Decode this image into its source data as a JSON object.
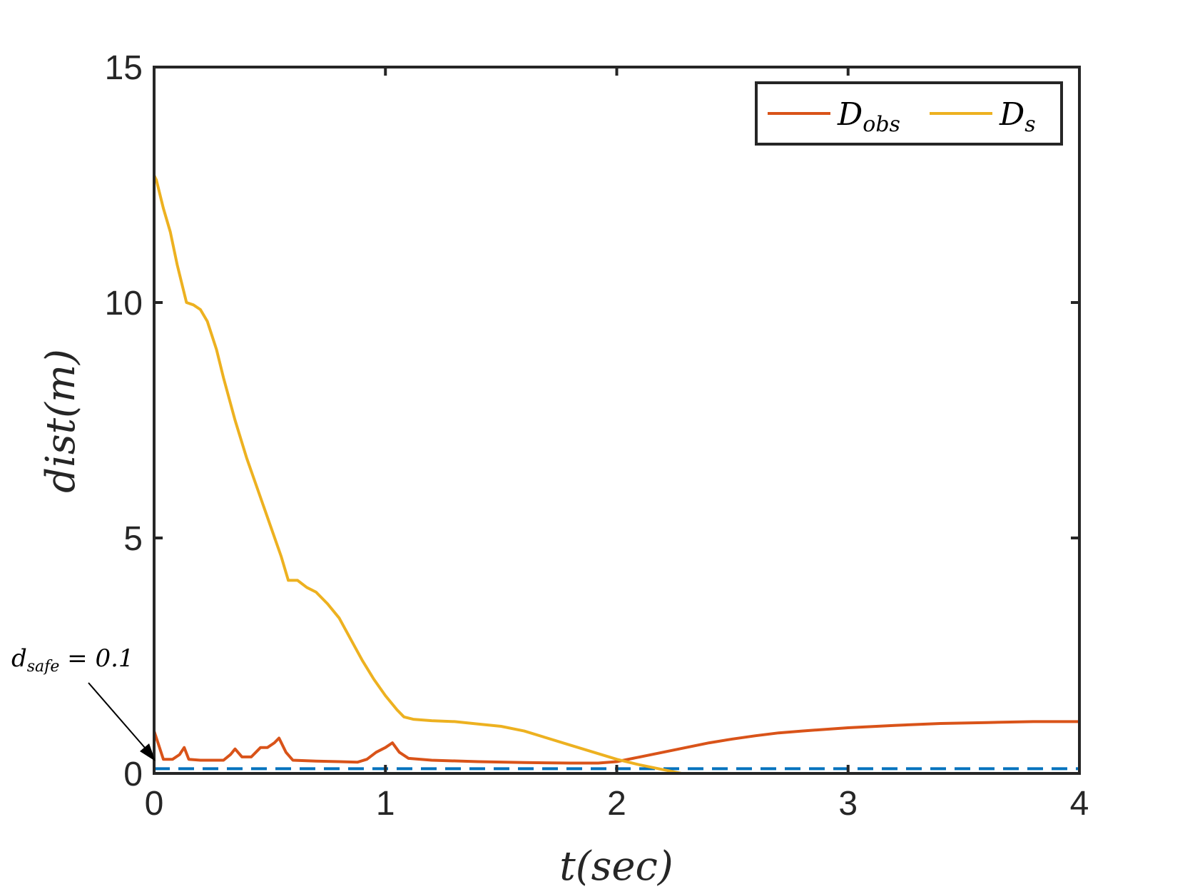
{
  "chart_data": {
    "type": "line",
    "xlabel": "t(sec)",
    "ylabel": "dist(m)",
    "xlim": [
      0,
      4
    ],
    "ylim": [
      0,
      15
    ],
    "x_ticks": [
      0,
      1,
      2,
      3,
      4
    ],
    "y_ticks": [
      0,
      5,
      10,
      15
    ],
    "x_tick_labels": [
      "0",
      "1",
      "2",
      "3",
      "4"
    ],
    "y_tick_labels": [
      "0",
      "5",
      "10",
      "15"
    ],
    "grid": false,
    "legend_position": "top-right",
    "legend_orientation": "horizontal",
    "legend": [
      {
        "base": "D",
        "sub": "obs",
        "color": "#D95319"
      },
      {
        "base": "D",
        "sub": "s",
        "color": "#EDB120"
      }
    ],
    "series": [
      {
        "name": "D_obs",
        "color": "#D95319",
        "style": "solid",
        "x": [
          0,
          0.02,
          0.04,
          0.08,
          0.11,
          0.13,
          0.15,
          0.2,
          0.3,
          0.33,
          0.35,
          0.38,
          0.42,
          0.44,
          0.46,
          0.49,
          0.52,
          0.54,
          0.57,
          0.6,
          0.7,
          0.8,
          0.88,
          0.92,
          0.96,
          1.0,
          1.03,
          1.06,
          1.1,
          1.2,
          1.4,
          1.6,
          1.8,
          1.92,
          2.0,
          2.1,
          2.2,
          2.3,
          2.4,
          2.5,
          2.6,
          2.7,
          2.8,
          3.0,
          3.2,
          3.4,
          3.6,
          3.8,
          4.0
        ],
        "y": [
          0.9,
          0.6,
          0.3,
          0.3,
          0.4,
          0.55,
          0.3,
          0.28,
          0.28,
          0.4,
          0.52,
          0.35,
          0.35,
          0.45,
          0.55,
          0.55,
          0.65,
          0.75,
          0.45,
          0.28,
          0.26,
          0.25,
          0.24,
          0.3,
          0.45,
          0.55,
          0.65,
          0.45,
          0.32,
          0.28,
          0.25,
          0.23,
          0.22,
          0.22,
          0.25,
          0.35,
          0.45,
          0.55,
          0.65,
          0.73,
          0.8,
          0.86,
          0.9,
          0.97,
          1.02,
          1.06,
          1.08,
          1.1,
          1.1
        ]
      },
      {
        "name": "D_s",
        "color": "#EDB120",
        "style": "solid",
        "x": [
          0,
          0.01,
          0.04,
          0.07,
          0.1,
          0.14,
          0.17,
          0.2,
          0.23,
          0.27,
          0.3,
          0.35,
          0.4,
          0.45,
          0.5,
          0.55,
          0.58,
          0.62,
          0.66,
          0.7,
          0.75,
          0.8,
          0.85,
          0.9,
          0.95,
          1.0,
          1.05,
          1.08,
          1.12,
          1.2,
          1.3,
          1.4,
          1.5,
          1.6,
          1.7,
          1.8,
          1.9,
          2.0,
          2.1,
          2.2,
          2.3,
          2.4,
          2.5,
          2.6,
          2.7,
          2.8,
          3.0,
          3.2,
          3.4,
          3.6,
          3.8,
          4.0
        ],
        "y": [
          12.7,
          12.6,
          12.0,
          11.5,
          10.8,
          10.0,
          9.95,
          9.85,
          9.6,
          9.0,
          8.4,
          7.5,
          6.7,
          6.0,
          5.3,
          4.6,
          4.1,
          4.1,
          3.95,
          3.85,
          3.6,
          3.3,
          2.85,
          2.4,
          2.0,
          1.65,
          1.35,
          1.2,
          1.15,
          1.12,
          1.1,
          1.05,
          1.0,
          0.9,
          0.75,
          0.6,
          0.45,
          0.3,
          0.18,
          0.08,
          -0.02,
          -0.1,
          -0.2,
          -0.28,
          -0.36,
          -0.42,
          -0.5,
          -0.55,
          -0.58,
          -0.6,
          -0.61,
          -0.62
        ]
      },
      {
        "name": "d_safe",
        "color": "#0072BD",
        "style": "dashed",
        "x": [
          0,
          4
        ],
        "y": [
          0.1,
          0.1
        ]
      }
    ],
    "annotation": {
      "text": "d",
      "sub": "safe",
      "rest": " = 0.1",
      "value": 0.1
    }
  }
}
